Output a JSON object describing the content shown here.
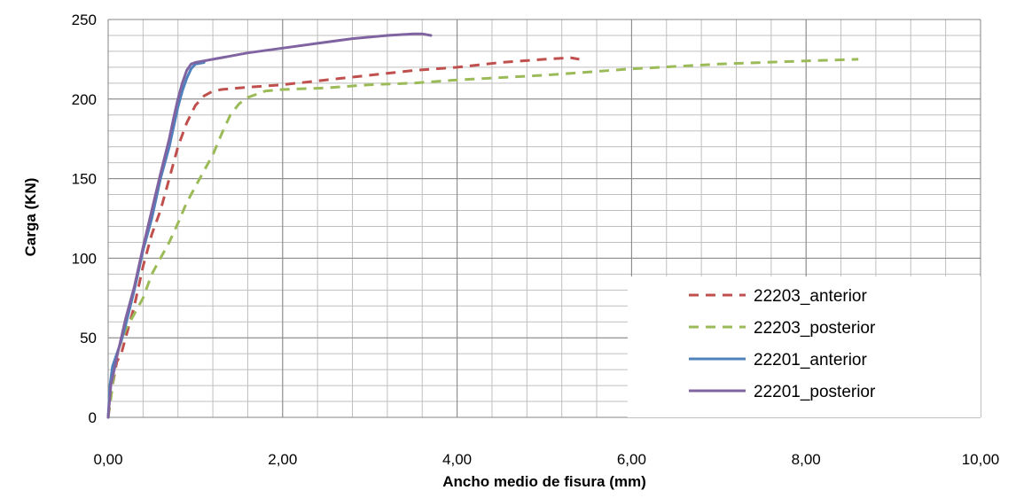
{
  "chart_data": {
    "type": "line",
    "title": "",
    "xlabel": "Ancho medio de fisura (mm)",
    "ylabel": "Carga (KN)",
    "xlim": [
      0,
      10
    ],
    "ylim": [
      0,
      250
    ],
    "x_major_step": 2,
    "x_minor_step": 0.4,
    "y_major_step": 50,
    "y_minor_step": 10,
    "x_tick_labels": [
      "0,00",
      "2,00",
      "4,00",
      "6,00",
      "8,00",
      "10,00"
    ],
    "y_tick_labels": [
      "0",
      "50",
      "100",
      "150",
      "200",
      "250"
    ],
    "grid": true,
    "legend_position": "bottom-right",
    "series": [
      {
        "name": "22203_anterior",
        "color": "#C0504D",
        "dash": "dashed",
        "x": [
          0.0,
          0.05,
          0.1,
          0.15,
          0.2,
          0.25,
          0.3,
          0.4,
          0.5,
          0.6,
          0.7,
          0.8,
          0.9,
          1.0,
          1.1,
          1.2,
          1.3,
          1.5,
          2.0,
          2.5,
          3.0,
          3.5,
          4.0,
          4.5,
          5.0,
          5.3,
          5.4
        ],
        "y": [
          0,
          20,
          35,
          40,
          50,
          60,
          70,
          95,
          115,
          130,
          150,
          170,
          185,
          196,
          202,
          205,
          206,
          207,
          209,
          212,
          215,
          218,
          220,
          223,
          225,
          226,
          225
        ]
      },
      {
        "name": "22203_posterior",
        "color": "#9BBB59",
        "dash": "dashed",
        "x": [
          0.0,
          0.05,
          0.1,
          0.2,
          0.3,
          0.4,
          0.5,
          0.6,
          0.7,
          0.8,
          0.9,
          1.0,
          1.1,
          1.2,
          1.3,
          1.4,
          1.5,
          1.6,
          1.8,
          2.0,
          2.5,
          3.0,
          3.5,
          4.0,
          5.0,
          6.0,
          7.0,
          8.0,
          8.6
        ],
        "y": [
          0,
          20,
          40,
          55,
          65,
          75,
          90,
          100,
          110,
          122,
          135,
          145,
          155,
          165,
          178,
          190,
          197,
          201,
          205,
          206,
          207,
          209,
          210,
          212,
          215,
          219,
          222,
          224,
          225
        ]
      },
      {
        "name": "22201_anterior",
        "color": "#4F81BD",
        "dash": "solid",
        "x": [
          0.0,
          0.02,
          0.05,
          0.1,
          0.15,
          0.2,
          0.3,
          0.4,
          0.5,
          0.6,
          0.7,
          0.8,
          0.85,
          0.9,
          0.95,
          1.0,
          1.1
        ],
        "y": [
          0,
          20,
          32,
          40,
          48,
          58,
          80,
          105,
          125,
          150,
          170,
          195,
          205,
          213,
          219,
          222,
          223
        ]
      },
      {
        "name": "22201_posterior",
        "color": "#8064A2",
        "dash": "solid",
        "x": [
          0.0,
          0.03,
          0.07,
          0.1,
          0.15,
          0.2,
          0.3,
          0.4,
          0.5,
          0.6,
          0.7,
          0.75,
          0.8,
          0.85,
          0.9,
          0.95,
          1.0,
          1.1,
          1.2,
          1.4,
          1.6,
          2.0,
          2.4,
          2.8,
          3.2,
          3.5,
          3.6,
          3.7
        ],
        "y": [
          0,
          20,
          30,
          38,
          50,
          62,
          82,
          107,
          130,
          153,
          175,
          188,
          200,
          210,
          218,
          222,
          223,
          224,
          225,
          227,
          229,
          232,
          235,
          238,
          240,
          241,
          241,
          240
        ]
      }
    ]
  }
}
